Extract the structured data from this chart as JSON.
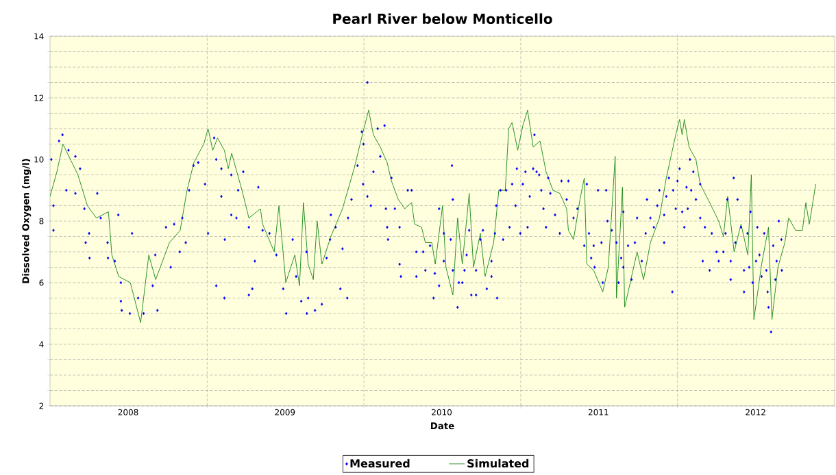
{
  "chart_data": {
    "type": "scatter",
    "title": "Pearl River below Monticello",
    "xlabel": "Date",
    "ylabel": "Dissolved Oxygen (mg/l)",
    "xlim": [
      "2008-01-01",
      "2013-01-01"
    ],
    "xticks": [
      {
        "value": "2008-07-01",
        "label": "2008"
      },
      {
        "value": "2009-01-01",
        "label": null
      },
      {
        "value": "2009-07-01",
        "label": "2009"
      },
      {
        "value": "2010-01-01",
        "label": null
      },
      {
        "value": "2010-07-01",
        "label": "2010"
      },
      {
        "value": "2011-01-01",
        "label": null
      },
      {
        "value": "2011-07-01",
        "label": "2011"
      },
      {
        "value": "2012-01-01",
        "label": null
      },
      {
        "value": "2012-07-01",
        "label": "2012"
      }
    ],
    "ylim": [
      2,
      14
    ],
    "yticks": [
      2,
      {
        "value": 2.5,
        "label": null
      },
      {
        "value": 3,
        "label": null
      },
      {
        "value": 3.5,
        "label": null
      },
      4,
      {
        "value": 4.5,
        "label": null
      },
      {
        "value": 5,
        "label": null
      },
      {
        "value": 5.5,
        "label": null
      },
      6,
      {
        "value": 6.5,
        "label": null
      },
      {
        "value": 7,
        "label": null
      },
      {
        "value": 7.5,
        "label": null
      },
      8,
      {
        "value": 8.5,
        "label": null
      },
      {
        "value": 9,
        "label": null
      },
      {
        "value": 9.5,
        "label": null
      },
      10,
      {
        "value": 10.5,
        "label": null
      },
      {
        "value": 11,
        "label": null
      },
      {
        "value": 11.5,
        "label": null
      },
      12,
      {
        "value": 12.5,
        "label": null
      },
      {
        "value": 13,
        "label": null
      },
      {
        "value": 13.5,
        "label": null
      },
      14
    ],
    "grid": true,
    "legend": "bottom",
    "series": [
      {
        "name": "Measured",
        "marker": "diamond",
        "color": "#0000ff",
        "x": [
          "2008-01-04",
          "2008-01-09",
          "2008-01-09",
          "2008-01-22",
          "2008-01-30",
          "2008-02-08",
          "2008-02-13",
          "2008-02-29",
          "2008-02-29",
          "2008-03-11",
          "2008-03-21",
          "2008-03-24",
          "2008-04-01",
          "2008-04-02",
          "2008-04-20",
          "2008-04-28",
          "2008-05-14",
          "2008-05-15",
          "2008-05-31",
          "2008-06-08",
          "2008-06-14",
          "2008-06-14",
          "2008-06-16",
          "2008-07-05",
          "2008-07-10",
          "2008-07-24",
          "2008-08-06",
          "2008-08-27",
          "2008-09-02",
          "2008-09-07",
          "2008-09-27",
          "2008-10-08",
          "2008-10-16",
          "2008-10-29",
          "2008-11-04",
          "2008-11-12",
          "2008-11-20",
          "2008-11-30",
          "2008-12-11",
          "2008-12-27",
          "2009-01-03",
          "2009-01-17",
          "2009-01-22",
          "2009-01-22",
          "2009-02-03",
          "2009-02-03",
          "2009-02-10",
          "2009-02-11",
          "2009-02-26",
          "2009-02-26",
          "2009-03-10",
          "2009-03-14",
          "2009-03-26",
          "2009-04-08",
          "2009-04-08",
          "2009-04-16",
          "2009-04-22",
          "2009-04-30",
          "2009-05-10",
          "2009-05-26",
          "2009-06-11",
          "2009-06-27",
          "2009-07-04",
          "2009-07-19",
          "2009-07-27",
          "2009-08-08",
          "2009-08-20",
          "2009-08-21",
          "2009-08-24",
          "2009-09-09",
          "2009-09-25",
          "2009-10-06",
          "2009-10-14",
          "2009-10-16",
          "2009-10-27",
          "2009-11-07",
          "2009-11-12",
          "2009-11-23",
          "2009-11-25",
          "2009-12-03",
          "2009-12-17",
          "2009-12-27",
          "2009-12-30",
          "2009-12-31",
          "2010-01-09",
          "2010-01-09",
          "2010-01-17",
          "2010-01-23",
          "2010-02-02",
          "2010-02-08",
          "2010-02-18",
          "2010-02-21",
          "2010-02-24",
          "2010-02-26",
          "2010-03-06",
          "2010-03-14",
          "2010-03-25",
          "2010-03-25",
          "2010-03-28",
          "2010-04-13",
          "2010-04-22",
          "2010-05-03",
          "2010-05-03",
          "2010-05-19",
          "2010-05-24",
          "2010-06-04",
          "2010-06-12",
          "2010-06-15",
          "2010-06-25",
          "2010-06-25",
          "2010-07-06",
          "2010-07-06",
          "2010-07-22",
          "2010-07-25",
          "2010-07-27",
          "2010-07-27",
          "2010-08-07",
          "2010-08-10",
          "2010-08-18",
          "2010-08-23",
          "2010-08-28",
          "2010-09-03",
          "2010-09-08",
          "2010-09-19",
          "2010-09-19",
          "2010-09-29",
          "2010-10-05",
          "2010-10-14",
          "2010-10-25",
          "2010-10-25",
          "2010-11-02",
          "2010-11-05",
          "2010-11-07",
          "2010-11-15",
          "2010-11-21",
          "2010-11-28",
          "2010-12-06",
          "2010-12-12",
          "2010-12-20",
          "2010-12-23",
          "2010-12-31",
          "2011-01-06",
          "2011-01-12",
          "2011-01-17",
          "2011-01-22",
          "2011-01-30",
          "2011-02-02",
          "2011-02-07",
          "2011-02-13",
          "2011-02-18",
          "2011-02-23",
          "2011-03-01",
          "2011-03-06",
          "2011-03-11",
          "2011-03-22",
          "2011-04-02",
          "2011-04-06",
          "2011-04-18",
          "2011-04-22",
          "2011-05-04",
          "2011-05-13",
          "2011-05-29",
          "2011-06-04",
          "2011-06-09",
          "2011-06-14",
          "2011-06-20",
          "2011-06-22",
          "2011-06-30",
          "2011-07-08",
          "2011-07-11",
          "2011-07-19",
          "2011-07-22",
          "2011-08-01",
          "2011-08-12",
          "2011-08-17",
          "2011-08-23",
          "2011-08-28",
          "2011-08-28",
          "2011-09-08",
          "2011-09-16",
          "2011-09-24",
          "2011-09-29",
          "2011-10-10",
          "2011-10-19",
          "2011-10-22",
          "2011-10-30",
          "2011-11-07",
          "2011-11-15",
          "2011-11-20",
          "2011-12-01",
          "2011-12-01",
          "2011-12-06",
          "2011-12-12",
          "2011-12-20",
          "2011-12-22",
          "2011-12-28",
          "2012-01-01",
          "2012-01-06",
          "2012-01-12",
          "2012-01-17",
          "2012-01-22",
          "2012-01-25",
          "2012-01-30",
          "2012-02-02",
          "2012-02-07",
          "2012-02-13",
          "2012-02-23",
          "2012-02-23",
          "2012-02-29",
          "2012-03-05",
          "2012-03-16",
          "2012-03-21",
          "2012-04-01",
          "2012-04-06",
          "2012-04-17",
          "2012-04-22",
          "2012-04-26",
          "2012-05-04",
          "2012-05-04",
          "2012-05-11",
          "2012-05-15",
          "2012-05-20",
          "2012-05-28",
          "2012-06-04",
          "2012-06-04",
          "2012-06-12",
          "2012-06-16",
          "2012-06-19",
          "2012-06-24",
          "2012-07-02",
          "2012-07-05",
          "2012-07-10",
          "2012-07-15",
          "2012-07-21",
          "2012-07-26",
          "2012-07-29",
          "2012-07-31",
          "2012-08-06",
          "2012-08-11",
          "2012-08-16",
          "2012-08-19",
          "2012-08-24",
          "2012-08-30",
          "2012-08-31"
        ],
        "values": [
          10.0,
          8.5,
          7.7,
          10.6,
          10.8,
          9.0,
          10.3,
          10.1,
          8.9,
          9.7,
          8.4,
          7.3,
          7.6,
          6.8,
          8.9,
          8.1,
          7.3,
          6.8,
          6.7,
          8.2,
          6.0,
          5.4,
          5.1,
          5.0,
          7.6,
          5.5,
          5.0,
          5.9,
          6.9,
          5.1,
          7.8,
          6.5,
          7.9,
          7.0,
          8.1,
          7.3,
          9.0,
          9.8,
          9.9,
          9.2,
          7.6,
          10.7,
          10.0,
          5.9,
          9.7,
          8.8,
          5.5,
          7.4,
          9.5,
          8.2,
          8.1,
          9.0,
          9.6,
          7.8,
          5.6,
          5.8,
          6.7,
          9.1,
          7.7,
          7.6,
          6.9,
          5.8,
          5.0,
          7.4,
          6.2,
          5.4,
          7.0,
          5.0,
          5.5,
          5.1,
          5.3,
          6.8,
          7.4,
          8.2,
          7.8,
          5.8,
          7.1,
          5.5,
          8.1,
          8.7,
          9.8,
          10.9,
          9.2,
          10.5,
          12.5,
          8.8,
          8.5,
          9.6,
          11.0,
          10.1,
          11.1,
          8.4,
          7.8,
          7.4,
          9.4,
          8.4,
          7.8,
          6.6,
          6.2,
          9.0,
          9.0,
          7.0,
          6.2,
          7.0,
          6.4,
          7.2,
          5.5,
          6.3,
          8.4,
          5.9,
          7.6,
          6.7,
          7.4,
          9.8,
          8.7,
          6.4,
          5.2,
          6.0,
          6.0,
          6.4,
          6.9,
          7.7,
          5.6,
          6.4,
          5.6,
          7.4,
          7.7,
          5.8,
          6.7,
          6.2,
          7.6,
          8.5,
          5.5,
          9.0,
          7.4,
          9.0,
          7.8,
          9.2,
          8.5,
          9.7,
          7.6,
          9.2,
          9.6,
          7.8,
          8.8,
          9.7,
          10.8,
          9.6,
          9.5,
          9.0,
          8.4,
          7.8,
          9.4,
          8.9,
          8.2,
          7.6,
          9.3,
          8.7,
          9.3,
          8.1,
          8.4,
          7.2,
          9.2,
          7.6,
          6.8,
          7.2,
          6.5,
          9.0,
          7.3,
          6.0,
          9.0,
          8.0,
          7.7,
          7.3,
          6.0,
          6.8,
          8.3,
          6.5,
          7.2,
          6.1,
          7.3,
          8.1,
          6.7,
          7.6,
          8.7,
          8.1,
          7.8,
          8.5,
          9.0,
          7.3,
          8.2,
          8.8,
          9.4,
          5.7,
          9.0,
          8.4,
          9.3,
          9.7,
          8.3,
          7.8,
          9.1,
          8.4,
          10.0,
          9.0,
          9.6,
          8.7,
          9.2,
          8.1,
          6.7,
          7.8,
          6.4,
          7.6,
          7.0,
          6.7,
          7.0,
          7.6,
          8.7,
          6.1,
          6.7,
          9.4,
          7.3,
          8.7,
          7.8,
          5.7,
          6.4,
          7.6,
          6.5,
          8.3,
          6.0,
          6.7,
          7.8,
          6.9,
          6.2,
          7.6,
          6.4,
          5.7,
          5.2,
          4.4,
          7.2,
          6.1,
          6.7,
          8.0,
          7.4,
          6.4
        ]
      },
      {
        "name": "Simulated",
        "type": "line",
        "color": "#1a8a1a",
        "x": [
          "2008-01-01",
          "2008-01-17",
          "2008-01-31",
          "2008-03-06",
          "2008-03-28",
          "2008-04-18",
          "2008-05-16",
          "2008-05-24",
          "2008-06-09",
          "2008-07-06",
          "2008-07-30",
          "2008-08-18",
          "2008-09-03",
          "2008-10-05",
          "2008-10-30",
          "2008-11-15",
          "2008-12-01",
          "2008-12-24",
          "2009-01-03",
          "2009-01-14",
          "2009-01-25",
          "2009-02-10",
          "2009-02-19",
          "2009-02-27",
          "2009-03-23",
          "2009-04-08",
          "2009-05-05",
          "2009-05-10",
          "2009-06-06",
          "2009-06-17",
          "2009-07-03",
          "2009-07-24",
          "2009-08-04",
          "2009-08-13",
          "2009-08-24",
          "2009-09-05",
          "2009-09-14",
          "2009-09-25",
          "2009-10-16",
          "2009-11-12",
          "2009-12-09",
          "2009-12-30",
          "2010-01-12",
          "2010-01-23",
          "2010-02-08",
          "2010-02-24",
          "2010-03-06",
          "2010-03-22",
          "2010-04-06",
          "2010-04-22",
          "2010-04-29",
          "2010-05-15",
          "2010-05-24",
          "2010-06-08",
          "2010-06-16",
          "2010-07-03",
          "2010-07-11",
          "2010-07-27",
          "2010-08-07",
          "2010-08-18",
          "2010-09-03",
          "2010-09-13",
          "2010-09-29",
          "2010-10-10",
          "2010-10-21",
          "2010-10-30",
          "2010-11-11",
          "2010-11-26",
          "2010-12-04",
          "2010-12-12",
          "2010-12-25",
          "2011-01-06",
          "2011-01-17",
          "2011-01-30",
          "2011-02-15",
          "2011-03-01",
          "2011-03-17",
          "2011-04-02",
          "2011-04-18",
          "2011-04-22",
          "2011-05-04",
          "2011-05-19",
          "2011-05-29",
          "2011-06-04",
          "2011-06-20",
          "2011-07-11",
          "2011-07-24",
          "2011-08-09",
          "2011-08-12",
          "2011-08-26",
          "2011-08-31",
          "2011-09-13",
          "2011-09-29",
          "2011-10-14",
          "2011-10-30",
          "2011-11-20",
          "2011-12-06",
          "2011-12-17",
          "2011-12-28",
          "2012-01-06",
          "2012-01-12",
          "2012-01-17",
          "2012-01-28",
          "2012-02-13",
          "2012-02-23",
          "2012-03-16",
          "2012-04-06",
          "2012-04-17",
          "2012-04-27",
          "2012-05-12",
          "2012-05-28",
          "2012-06-13",
          "2012-06-21",
          "2012-06-27",
          "2012-07-15",
          "2012-07-31",
          "2012-08-08",
          "2012-08-22",
          "2012-09-07",
          "2012-09-16",
          "2012-10-02",
          "2012-10-18",
          "2012-10-26",
          "2012-11-03",
          "2012-11-18"
        ],
        "values": [
          8.8,
          9.6,
          10.5,
          9.5,
          8.5,
          8.1,
          8.3,
          6.9,
          6.2,
          6.0,
          4.7,
          6.9,
          6.1,
          7.3,
          7.7,
          9.0,
          9.9,
          10.5,
          11.0,
          10.3,
          10.7,
          10.3,
          9.7,
          10.2,
          9.0,
          8.1,
          8.4,
          7.9,
          7.0,
          8.5,
          6.0,
          6.9,
          5.9,
          8.6,
          6.6,
          6.1,
          8.0,
          6.6,
          7.5,
          8.4,
          9.7,
          10.9,
          11.6,
          10.8,
          10.4,
          9.9,
          9.3,
          8.7,
          8.4,
          8.6,
          7.9,
          7.8,
          7.3,
          7.3,
          6.6,
          8.5,
          6.5,
          5.6,
          8.1,
          6.6,
          8.9,
          6.5,
          7.6,
          6.2,
          6.8,
          7.3,
          9.0,
          9.0,
          11.0,
          11.2,
          10.3,
          11.1,
          11.6,
          10.4,
          10.6,
          9.6,
          9.0,
          8.9,
          8.4,
          7.7,
          7.4,
          8.7,
          9.4,
          6.6,
          6.4,
          5.7,
          6.5,
          10.1,
          5.5,
          9.1,
          5.2,
          6.0,
          7.0,
          6.1,
          7.3,
          8.1,
          9.4,
          10.1,
          10.8,
          11.3,
          10.8,
          11.3,
          10.4,
          10.0,
          9.2,
          8.6,
          8.0,
          7.5,
          8.8,
          7.0,
          7.9,
          6.9,
          9.5,
          4.8,
          6.6,
          7.8,
          4.8,
          6.5,
          7.3,
          8.1,
          7.7,
          7.7,
          8.6,
          7.9,
          9.2
        ]
      }
    ]
  }
}
